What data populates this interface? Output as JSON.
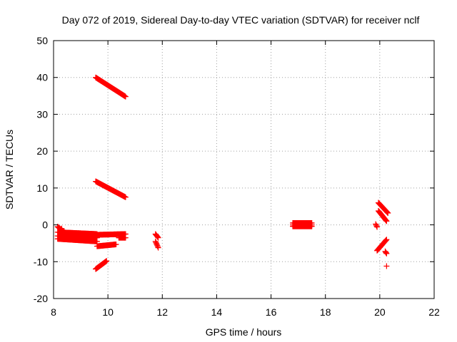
{
  "chart_data": {
    "type": "scatter",
    "title": "Day 072 of 2019, Sidereal Day-to-day VTEC variation (SDTVAR) for receiver nclf",
    "xlabel": "GPS time / hours",
    "ylabel": "SDTVAR / TECUs",
    "xlim": [
      8,
      22
    ],
    "ylim": [
      -20,
      50
    ],
    "xticks": [
      "8",
      "10",
      "12",
      "14",
      "16",
      "18",
      "20",
      "22"
    ],
    "yticks": [
      "-20",
      "-10",
      "0",
      "10",
      "20",
      "30",
      "40",
      "50"
    ],
    "grid": true,
    "marker": "+",
    "series": [
      {
        "name": "SDTVAR",
        "color": "#ff0000",
        "segments": [
          {
            "x": [
              9.55,
              10.65
            ],
            "y": [
              40.0,
              34.8
            ]
          },
          {
            "x": [
              9.55,
              10.65
            ],
            "y": [
              11.8,
              7.5
            ]
          },
          {
            "x": [
              9.55,
              9.95
            ],
            "y": [
              -12.0,
              -9.8
            ]
          },
          {
            "x": [
              8.15,
              8.4
            ],
            "y": [
              -0.5,
              -2.0
            ]
          },
          {
            "x": [
              8.15,
              9.6
            ],
            "y": [
              -2.0,
              -2.5
            ]
          },
          {
            "x": [
              8.15,
              9.6
            ],
            "y": [
              -3.0,
              -3.5
            ]
          },
          {
            "x": [
              8.15,
              9.6
            ],
            "y": [
              -3.8,
              -4.5
            ]
          },
          {
            "x": [
              8.6,
              9.4
            ],
            "y": [
              -2.5,
              -3.0
            ]
          },
          {
            "x": [
              9.6,
              10.65
            ],
            "y": [
              -2.7,
              -2.5
            ]
          },
          {
            "x": [
              9.6,
              10.3
            ],
            "y": [
              -5.8,
              -5.3
            ]
          },
          {
            "x": [
              10.4,
              10.65
            ],
            "y": [
              -3.5,
              -3.5
            ]
          },
          {
            "x": [
              11.75,
              11.85
            ],
            "y": [
              -2.5,
              -3.5
            ]
          },
          {
            "x": [
              11.75,
              11.85
            ],
            "y": [
              -4.5,
              -6.2
            ]
          },
          {
            "x": [
              16.8,
              17.5
            ],
            "y": [
              0.0,
              0.0
            ]
          },
          {
            "x": [
              16.8,
              17.5
            ],
            "y": [
              0.5,
              0.5
            ]
          },
          {
            "x": [
              16.8,
              17.5
            ],
            "y": [
              -0.4,
              -0.4
            ]
          },
          {
            "x": [
              19.85,
              19.9
            ],
            "y": [
              0.2,
              -0.6
            ]
          },
          {
            "x": [
              19.95,
              20.3
            ],
            "y": [
              6.0,
              3.2
            ]
          },
          {
            "x": [
              19.95,
              20.25
            ],
            "y": [
              3.8,
              1.0
            ]
          },
          {
            "x": [
              19.9,
              20.25
            ],
            "y": [
              -7.0,
              -4.0
            ]
          },
          {
            "x": [
              20.2,
              20.25
            ],
            "y": [
              -7.2,
              -7.8
            ]
          }
        ],
        "points": [
          [
            20.25,
            -11.2
          ],
          [
            9.35,
            -4.2
          ],
          [
            9.45,
            -3.0
          ],
          [
            8.3,
            -1.0
          ]
        ]
      }
    ]
  }
}
